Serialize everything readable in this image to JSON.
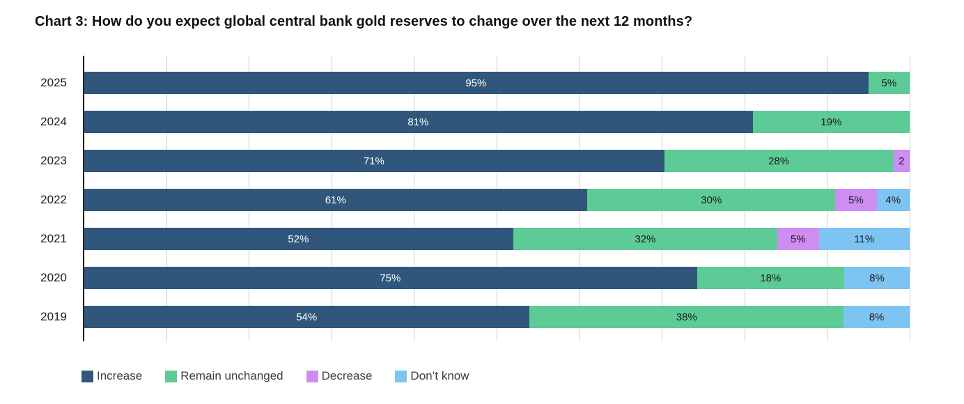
{
  "page": {
    "background_color": "#ffffff"
  },
  "chart_data": {
    "type": "bar",
    "orientation": "horizontal-stacked",
    "title": "Chart 3: How do you expect global central bank gold reserves to change over the next 12 months?",
    "categories": [
      "2025",
      "2024",
      "2023",
      "2022",
      "2021",
      "2020",
      "2019"
    ],
    "series": [
      {
        "name": "Increase",
        "color": "#30567C",
        "values": [
          95,
          81,
          71,
          61,
          52,
          75,
          54
        ]
      },
      {
        "name": "Remain unchanged",
        "color": "#5DCB96",
        "values": [
          5,
          19,
          28,
          30,
          32,
          18,
          38
        ]
      },
      {
        "name": "Decrease",
        "color": "#CE8DF0",
        "values": [
          0,
          0,
          2,
          5,
          5,
          0,
          0
        ]
      },
      {
        "name": "Don’t know",
        "color": "#7EC4F2",
        "values": [
          0,
          0,
          0,
          4,
          11,
          8,
          8
        ]
      }
    ],
    "segment_labels": [
      [
        "95%",
        "5%",
        "",
        ""
      ],
      [
        "81%",
        "19%",
        "",
        ""
      ],
      [
        "71%",
        "28%",
        "2",
        ""
      ],
      [
        "61%",
        "30%",
        "5%",
        "4%"
      ],
      [
        "52%",
        "32%",
        "5%",
        "11%"
      ],
      [
        "75%",
        "18%",
        "",
        "8%"
      ],
      [
        "54%",
        "38%",
        "",
        "8%"
      ]
    ],
    "xlabel": "",
    "ylabel": "",
    "xlim": [
      0,
      100
    ],
    "grid": {
      "show": true,
      "interval_pct": 10,
      "line_color": "#cccccc",
      "axis_color": "#000000"
    },
    "legend_position": "bottom-left",
    "label_color_on_dark": "#ffffff",
    "label_color_on_light": "#1a1a1a"
  }
}
